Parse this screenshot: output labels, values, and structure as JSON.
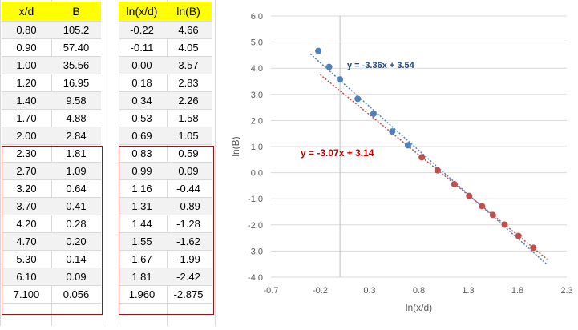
{
  "table_left": {
    "headers": [
      "x/d",
      "B"
    ],
    "rows": [
      [
        "0.80",
        "105.2"
      ],
      [
        "0.90",
        "57.40"
      ],
      [
        "1.00",
        "35.56"
      ],
      [
        "1.20",
        "16.95"
      ],
      [
        "1.40",
        "9.58"
      ],
      [
        "1.70",
        "4.88"
      ],
      [
        "2.00",
        "2.84"
      ],
      [
        "2.30",
        "1.81"
      ],
      [
        "2.70",
        "1.09"
      ],
      [
        "3.20",
        "0.64"
      ],
      [
        "3.70",
        "0.41"
      ],
      [
        "4.20",
        "0.28"
      ],
      [
        "4.70",
        "0.20"
      ],
      [
        "5.30",
        "0.14"
      ],
      [
        "6.10",
        "0.09"
      ],
      [
        "7.100",
        "0.056"
      ]
    ]
  },
  "table_right": {
    "headers": [
      "ln(x/d)",
      "ln(B)"
    ],
    "rows": [
      [
        "-0.22",
        "4.66"
      ],
      [
        "-0.11",
        "4.05"
      ],
      [
        "0.00",
        "3.57"
      ],
      [
        "0.18",
        "2.83"
      ],
      [
        "0.34",
        "2.26"
      ],
      [
        "0.53",
        "1.58"
      ],
      [
        "0.69",
        "1.05"
      ],
      [
        "0.83",
        "0.59"
      ],
      [
        "0.99",
        "0.09"
      ],
      [
        "1.16",
        "-0.44"
      ],
      [
        "1.31",
        "-0.89"
      ],
      [
        "1.44",
        "-1.28"
      ],
      [
        "1.55",
        "-1.62"
      ],
      [
        "1.67",
        "-1.99"
      ],
      [
        "1.81",
        "-2.42"
      ],
      [
        "1.960",
        "-2.875"
      ]
    ]
  },
  "colors": {
    "header_bg": "#ffff00",
    "box_border": "#8b1a1a",
    "blue": "#4f81bd",
    "red": "#c0504d",
    "blue_label": "#1f497d",
    "red_label": "#c00000"
  },
  "chart_data": {
    "type": "scatter",
    "title": "",
    "xlabel": "ln(x/d)",
    "ylabel": "ln(B)",
    "xlim": [
      -0.7,
      2.3
    ],
    "ylim": [
      -4.0,
      6.0
    ],
    "xticks": [
      "-0.7",
      "-0.2",
      "0.3",
      "0.8",
      "1.3",
      "1.8",
      "2.3"
    ],
    "yticks": [
      "6.0",
      "5.0",
      "4.0",
      "3.0",
      "2.0",
      "1.0",
      "0.0",
      "-1.0",
      "-2.0",
      "-3.0",
      "-4.0"
    ],
    "series": [
      {
        "name": "blue",
        "x": [
          -0.22,
          -0.11,
          0.0,
          0.18,
          0.34,
          0.53,
          0.69
        ],
        "y": [
          4.66,
          4.05,
          3.57,
          2.83,
          2.26,
          1.58,
          1.05
        ]
      },
      {
        "name": "red",
        "x": [
          0.83,
          0.99,
          1.16,
          1.31,
          1.44,
          1.55,
          1.67,
          1.81,
          1.96
        ],
        "y": [
          0.59,
          0.09,
          -0.44,
          -0.89,
          -1.28,
          -1.62,
          -1.99,
          -2.42,
          -2.875
        ]
      }
    ],
    "trendlines": [
      {
        "series": "blue",
        "slope": -3.36,
        "intercept": 3.54,
        "x_range": [
          -0.3,
          2.1
        ],
        "label": "y = -3.36x + 3.54"
      },
      {
        "series": "red",
        "slope": -3.07,
        "intercept": 3.14,
        "x_range": [
          -0.2,
          2.1
        ],
        "label": "y = -3.07x + 3.14"
      }
    ]
  }
}
